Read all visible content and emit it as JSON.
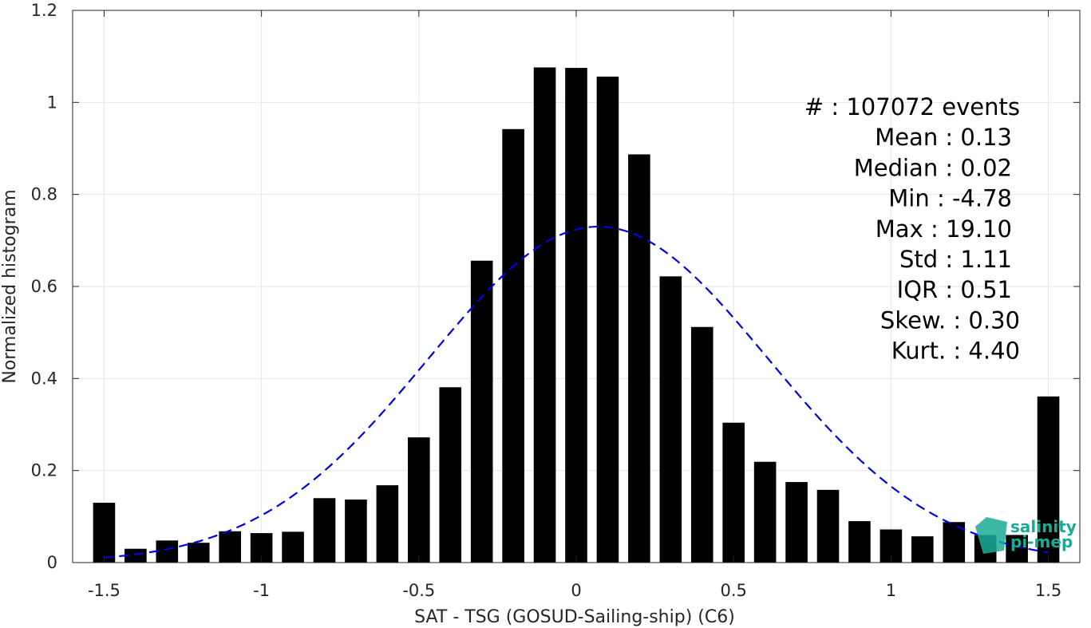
{
  "chart_data": {
    "type": "bar",
    "xlabel": "SAT - TSG (GOSUD-Sailing-ship) (C6)",
    "ylabel": "Normalized histogram",
    "xlim": [
      -1.6,
      1.6
    ],
    "ylim": [
      0,
      1.2
    ],
    "xticks": [
      -1.5,
      -1,
      -0.5,
      0,
      0.5,
      1,
      1.5
    ],
    "xtick_labels": [
      "-1.5",
      "-1",
      "-0.5",
      "0",
      "0.5",
      "1",
      "1.5"
    ],
    "yticks": [
      0,
      0.2,
      0.4,
      0.6,
      0.8,
      1,
      1.2
    ],
    "ytick_labels": [
      "0",
      "0.2",
      "0.4",
      "0.6",
      "0.8",
      "1",
      "1.2"
    ],
    "grid": true,
    "bar_width": 0.07,
    "x": [
      -1.5,
      -1.4,
      -1.3,
      -1.2,
      -1.1,
      -1.0,
      -0.9,
      -0.8,
      -0.7,
      -0.6,
      -0.5,
      -0.4,
      -0.3,
      -0.2,
      -0.1,
      0.0,
      0.1,
      0.2,
      0.3,
      0.4,
      0.5,
      0.6,
      0.7,
      0.8,
      0.9,
      1.0,
      1.1,
      1.2,
      1.3,
      1.4,
      1.5
    ],
    "values": [
      0.13,
      0.03,
      0.048,
      0.043,
      0.068,
      0.064,
      0.067,
      0.14,
      0.137,
      0.168,
      0.272,
      0.381,
      0.656,
      0.942,
      1.076,
      1.075,
      1.056,
      0.887,
      0.622,
      0.512,
      0.304,
      0.219,
      0.175,
      0.158,
      0.09,
      0.072,
      0.057,
      0.088,
      0.06,
      0.06,
      0.361
    ],
    "bar_color": "#000000",
    "fit_curve": {
      "style": "dashed",
      "color": "#0000e6",
      "mean": 0.07,
      "sigma": 0.54,
      "amplitude": 0.73,
      "x_range": [
        -1.5,
        1.5
      ]
    },
    "annotations": [
      {
        "label": "#",
        "sep": ":",
        "value": "107072 events"
      },
      {
        "label": "Mean",
        "sep": ":",
        "value": "0.13"
      },
      {
        "label": "Median",
        "sep": ":",
        "value": "0.02"
      },
      {
        "label": "Min",
        "sep": ":",
        "value": "-4.78"
      },
      {
        "label": "Max",
        "sep": ":",
        "value": "19.10"
      },
      {
        "label": "Std",
        "sep": ":",
        "value": "1.11"
      },
      {
        "label": "IQR",
        "sep": ":",
        "value": "0.51"
      },
      {
        "label": "Skew.",
        "sep": ":",
        "value": "0.30"
      },
      {
        "label": "Kurt.",
        "sep": ":",
        "value": "4.40"
      }
    ]
  },
  "logo": {
    "line1": "salinity",
    "line2": "pi-mep",
    "color": "#1aab94"
  }
}
